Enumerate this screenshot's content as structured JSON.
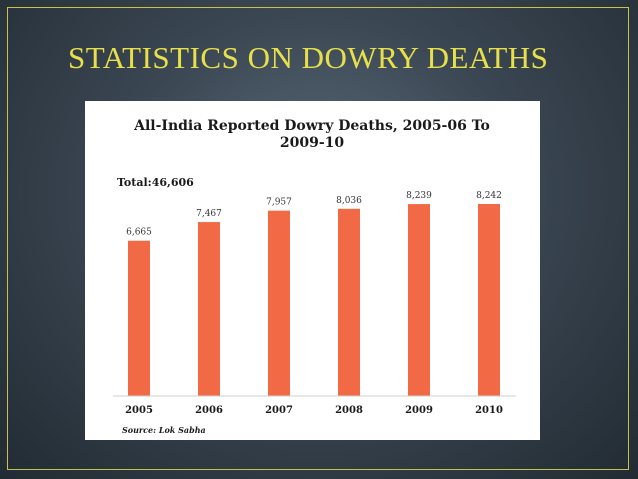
{
  "slide": {
    "title": "STATISTICS ON DOWRY DEATHS",
    "colors": {
      "title": "#e7e04a",
      "frame": "#c9c24a",
      "bar": "#f26a45"
    }
  },
  "chart_data": {
    "type": "bar",
    "title_line1": "All-India Reported Dowry Deaths, 2005-06 To",
    "title_line2": "2009-10",
    "total_label": "Total:46,606",
    "categories": [
      "2005",
      "2006",
      "2007",
      "2008",
      "2009",
      "2010"
    ],
    "values": [
      6665,
      7467,
      7957,
      8036,
      8239,
      8242
    ],
    "value_labels": [
      "6,665",
      "7,467",
      "7,957",
      "8,036",
      "8,239",
      "8,242"
    ],
    "ylim": [
      0,
      8500
    ],
    "grid": false,
    "legend": "none",
    "source": "Source: Lok Sabha"
  }
}
